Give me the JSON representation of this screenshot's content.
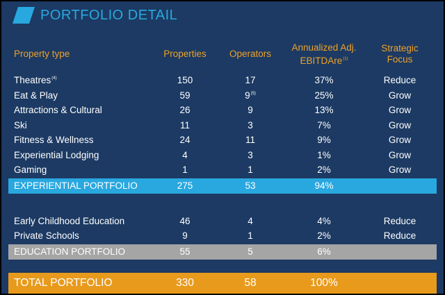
{
  "header": {
    "title": "PORTFOLIO DETAIL"
  },
  "table": {
    "columns": [
      {
        "label": "Property type"
      },
      {
        "label": "Properties"
      },
      {
        "label": "Operators"
      },
      {
        "label": "Annualized Adj. EBITDAre",
        "note": "(1)"
      },
      {
        "label": "Strategic Focus"
      }
    ],
    "groups": [
      {
        "rows": [
          [
            {
              "text": "Theatres",
              "note": "(4)"
            },
            "150",
            "17",
            "37%",
            "Reduce"
          ],
          [
            "Eat & Play",
            "59",
            {
              "text": "9",
              "note": "(5)"
            },
            "25%",
            "Grow"
          ],
          [
            "Attractions & Cultural",
            "26",
            "9",
            "13%",
            "Grow"
          ],
          [
            "Ski",
            "11",
            "3",
            "7%",
            "Grow"
          ],
          [
            "Fitness & Wellness",
            "24",
            "11",
            "9%",
            "Grow"
          ],
          [
            "Experiential Lodging",
            "4",
            "3",
            "1%",
            "Grow"
          ],
          [
            "Gaming",
            "1",
            "1",
            "2%",
            "Grow"
          ]
        ],
        "subtotal": [
          "EXPERIENTIAL PORTFOLIO",
          "275",
          "53",
          "94%"
        ]
      },
      {
        "rows": [
          [
            "Early Childhood Education",
            "46",
            "4",
            "4%",
            "Reduce"
          ],
          [
            "Private Schools",
            "9",
            "1",
            "2%",
            "Reduce"
          ]
        ],
        "subtotal": [
          "EDUCATION PORTFOLIO",
          "55",
          "5",
          "6%"
        ]
      }
    ],
    "total": [
      "TOTAL PORTFOLIO",
      "330",
      "58",
      "100%"
    ]
  }
}
